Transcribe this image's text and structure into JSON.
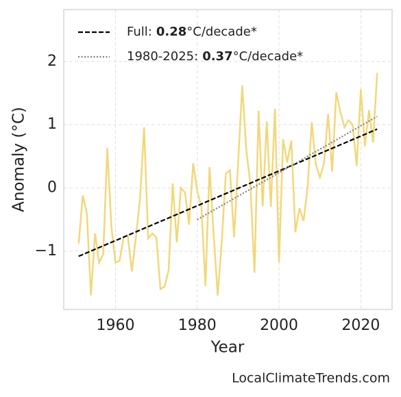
{
  "chart_data": {
    "type": "line",
    "x_label": "Year",
    "y_label": "Anomaly (°C)",
    "source": "LocalClimateTrends.com",
    "xlim": [
      1947.35,
      2027.65
    ],
    "ylim": [
      -1.92,
      2.82
    ],
    "xticks": [
      1960,
      1980,
      2000,
      2020
    ],
    "yticks": [
      {
        "value": -1,
        "label": "−1"
      },
      0,
      1,
      2
    ],
    "grid": true,
    "legend": "upper left",
    "series": [
      {
        "color": "#f2d77a",
        "style": "solid",
        "x": [
          1951,
          1952,
          1953,
          1954,
          1955,
          1956,
          1957,
          1958,
          1959,
          1960,
          1961,
          1962,
          1963,
          1964,
          1965,
          1966,
          1967,
          1968,
          1969,
          1970,
          1971,
          1972,
          1973,
          1974,
          1975,
          1976,
          1977,
          1978,
          1979,
          1980,
          1981,
          1982,
          1983,
          1984,
          1985,
          1986,
          1987,
          1988,
          1989,
          1990,
          1991,
          1992,
          1993,
          1994,
          1995,
          1996,
          1997,
          1998,
          1999,
          2000,
          2001,
          2002,
          2003,
          2004,
          2005,
          2006,
          2007,
          2008,
          2009,
          2010,
          2011,
          2012,
          2013,
          2014,
          2015,
          2016,
          2017,
          2018,
          2019,
          2020,
          2021,
          2022,
          2023,
          2024
        ],
        "values": [
          -0.88,
          -0.12,
          -0.4,
          -1.7,
          -0.72,
          -1.18,
          -1.05,
          0.63,
          -0.62,
          -1.18,
          -1.15,
          -0.78,
          -0.75,
          -1.32,
          -0.78,
          -0.17,
          0.96,
          -0.8,
          -0.72,
          -0.78,
          -1.6,
          -1.56,
          -1.3,
          0.07,
          -0.86,
          0.0,
          -0.07,
          -0.58,
          0.39,
          -0.05,
          -0.29,
          -1.55,
          0.33,
          -0.72,
          -1.7,
          -0.84,
          0.23,
          0.28,
          -0.78,
          0.4,
          1.62,
          0.6,
          0.05,
          -1.34,
          1.22,
          -0.29,
          1.05,
          -0.3,
          1.25,
          -1.18,
          0.77,
          0.4,
          0.75,
          -0.7,
          -0.32,
          -0.52,
          0.02,
          1.04,
          0.37,
          0.17,
          0.39,
          1.17,
          0.26,
          1.51,
          1.2,
          0.96,
          1.07,
          1.0,
          0.35,
          1.56,
          0.66,
          1.23,
          0.72,
          1.82
        ]
      },
      {
        "name": "Full:",
        "rate": "0.28",
        "unit": "°C/decade*",
        "color": "#000000",
        "style": "dashed",
        "x": [
          1951,
          2024
        ],
        "values": [
          -1.08,
          0.93
        ]
      },
      {
        "name": "1980-2025:",
        "rate": "0.37",
        "unit": "°C/decade*",
        "color": "#808080",
        "style": "dotted",
        "x": [
          1980,
          2024
        ],
        "values": [
          -0.5,
          1.13
        ]
      }
    ]
  }
}
